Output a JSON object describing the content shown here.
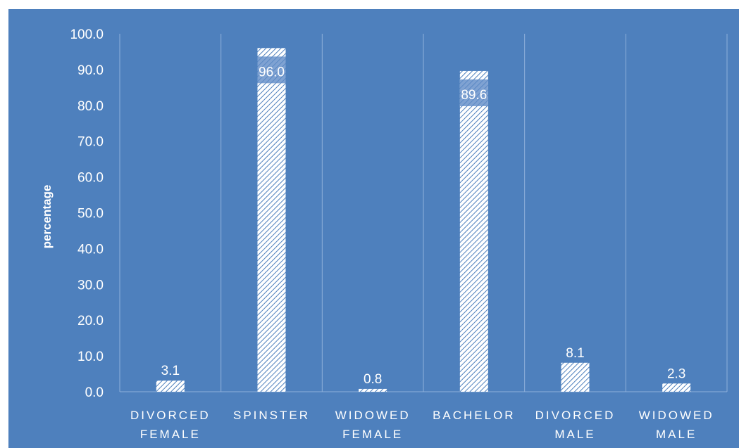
{
  "chart_data": {
    "type": "bar",
    "title": "",
    "xlabel": "",
    "ylabel": "percentage",
    "ylim": [
      0,
      100
    ],
    "yticks": [
      "0.0",
      "10.0",
      "20.0",
      "30.0",
      "40.0",
      "50.0",
      "60.0",
      "70.0",
      "80.0",
      "90.0",
      "100.0"
    ],
    "grid": "vertical category separators",
    "legend": "none",
    "categories": [
      [
        "DIVORCED",
        "FEMALE"
      ],
      [
        "SPINSTER"
      ],
      [
        "WIDOWED",
        "FEMALE"
      ],
      [
        "BACHELOR"
      ],
      [
        "DIVORCED",
        "MALE"
      ],
      [
        "WIDOWED",
        "MALE"
      ]
    ],
    "values": [
      3.1,
      96.0,
      0.8,
      89.6,
      8.1,
      2.3
    ],
    "data_labels": [
      "3.1",
      "96.0",
      "0.8",
      "89.6",
      "8.1",
      "2.3"
    ]
  },
  "colors": {
    "background": "#4e80bd",
    "bar_fill": "#ffffff",
    "bar_hatch": "#4e80bd",
    "text": "#ffffff",
    "grid": "#8fb0da"
  }
}
